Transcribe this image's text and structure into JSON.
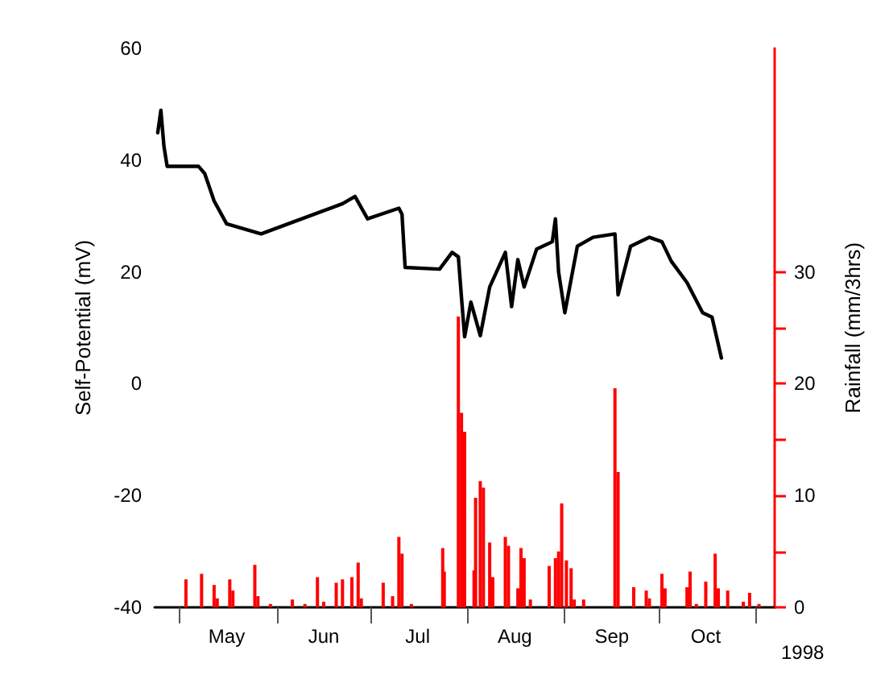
{
  "chart_data": {
    "type": "line",
    "xlabel": "1998",
    "ylabel": "Self-Potential (mV)",
    "y2label": "Rainfall (mm/3hrs)",
    "xlim": [
      "1998-04-23",
      "1998-11-07"
    ],
    "xticks": [
      {
        "value": "1998-05-01",
        "label": null
      },
      {
        "value": "1998-05-16",
        "label": "May"
      },
      {
        "value": "1998-06-01",
        "label": null
      },
      {
        "value": "1998-06-16",
        "label": "Jun"
      },
      {
        "value": "1998-07-01",
        "label": null
      },
      {
        "value": "1998-07-16",
        "label": "Jul"
      },
      {
        "value": "1998-08-01",
        "label": null
      },
      {
        "value": "1998-08-16",
        "label": "Aug"
      },
      {
        "value": "1998-09-01",
        "label": null
      },
      {
        "value": "1998-09-16",
        "label": "Sep"
      },
      {
        "value": "1998-10-01",
        "label": null
      },
      {
        "value": "1998-10-16",
        "label": "Oct"
      },
      {
        "value": "1998-11-01",
        "label": null
      }
    ],
    "ylim": [
      -40,
      60
    ],
    "yticks": [
      -40,
      -20,
      0,
      20,
      40,
      60
    ],
    "y2lim": [
      0,
      50
    ],
    "y2ticks": [
      0,
      {
        "value": 5,
        "label": null
      },
      10,
      {
        "value": 15,
        "label": null
      },
      20,
      {
        "value": 25,
        "label": null
      },
      30
    ],
    "grid": false,
    "marker": "none",
    "line_style": "solid",
    "series": [
      {
        "color": "#000000",
        "x": [
          "1998-04-24",
          "1998-04-25",
          "1998-04-26",
          "1998-04-27",
          "1998-05-07",
          "1998-05-09",
          "1998-05-12",
          "1998-05-16",
          "1998-05-27",
          "1998-06-09",
          "1998-06-22",
          "1998-06-26",
          "1998-06-30",
          "1998-07-10",
          "1998-07-11",
          "1998-07-12",
          "1998-07-23",
          "1998-07-27",
          "1998-07-29",
          "1998-07-30",
          "1998-07-31",
          "1998-08-02",
          "1998-08-05",
          "1998-08-08",
          "1998-08-13",
          "1998-08-15",
          "1998-08-17",
          "1998-08-19",
          "1998-08-23",
          "1998-08-28",
          "1998-08-29",
          "1998-08-30",
          "1998-09-01",
          "1998-09-05",
          "1998-09-10",
          "1998-09-17",
          "1998-09-18",
          "1998-09-22",
          "1998-09-28",
          "1998-10-02",
          "1998-10-05",
          "1998-10-10",
          "1998-10-15",
          "1998-10-18",
          "1998-10-21"
        ],
        "values": [
          44.9,
          48.9,
          42.4,
          38.9,
          38.9,
          37.6,
          32.7,
          28.6,
          26.8,
          29.5,
          32.2,
          33.5,
          29.5,
          31.4,
          30.3,
          20.8,
          20.5,
          23.5,
          22.7,
          15.4,
          8.4,
          14.6,
          8.6,
          17.3,
          23.5,
          13.8,
          22.2,
          17.3,
          24.1,
          25.4,
          29.5,
          20.0,
          12.7,
          24.6,
          26.2,
          26.8,
          15.9,
          24.6,
          26.2,
          25.4,
          21.9,
          18.1,
          12.7,
          11.9,
          4.6
        ]
      },
      {
        "type": "bar",
        "axis": "y2",
        "color": "#ff0000",
        "x": [
          "1998-05-03",
          "1998-05-08",
          "1998-05-12",
          "1998-05-13",
          "1998-05-17",
          "1998-05-18",
          "1998-05-25",
          "1998-05-26",
          "1998-05-30",
          "1998-06-06",
          "1998-06-10",
          "1998-06-14",
          "1998-06-16",
          "1998-06-20",
          "1998-06-22",
          "1998-06-25",
          "1998-06-27",
          "1998-06-28",
          "1998-07-05",
          "1998-07-08",
          "1998-07-10",
          "1998-07-11",
          "1998-07-14",
          "1998-07-24",
          "1998-07-24T12:00",
          "1998-07-29",
          "1998-07-30",
          "1998-07-31",
          "1998-08-03",
          "1998-08-03T12:00",
          "1998-08-05",
          "1998-08-06",
          "1998-08-08",
          "1998-08-09",
          "1998-08-13",
          "1998-08-14",
          "1998-08-17",
          "1998-08-18",
          "1998-08-19",
          "1998-08-21",
          "1998-08-27",
          "1998-08-29",
          "1998-08-30",
          "1998-08-31",
          "1998-09-01T12:00",
          "1998-09-03",
          "1998-09-04",
          "1998-09-07",
          "1998-09-17",
          "1998-09-18",
          "1998-09-23",
          "1998-09-27",
          "1998-09-28",
          "1998-10-02",
          "1998-10-03",
          "1998-10-10",
          "1998-10-11",
          "1998-10-13",
          "1998-10-16",
          "1998-10-19",
          "1998-10-20",
          "1998-10-23",
          "1998-10-28",
          "1998-10-30",
          "1998-11-02"
        ],
        "values": [
          2.5,
          3.0,
          2.0,
          0.8,
          2.5,
          1.5,
          3.8,
          1.0,
          0.3,
          0.7,
          0.3,
          2.7,
          0.5,
          2.2,
          2.5,
          2.7,
          4.0,
          0.8,
          2.2,
          1.0,
          6.3,
          4.8,
          0.3,
          5.3,
          3.2,
          26,
          17.4,
          15.7,
          3.3,
          9.8,
          11.3,
          10.7,
          5.8,
          2.7,
          6.3,
          5.5,
          1.7,
          5.3,
          4.4,
          0.7,
          3.7,
          4.4,
          5.0,
          9.3,
          4.2,
          3.5,
          0.7,
          0.7,
          19.6,
          12.1,
          1.8,
          1.5,
          0.8,
          3.0,
          1.7,
          1.8,
          3.2,
          0.3,
          2.3,
          4.8,
          1.7,
          1.5,
          0.5,
          1.3,
          0.3
        ]
      }
    ]
  }
}
